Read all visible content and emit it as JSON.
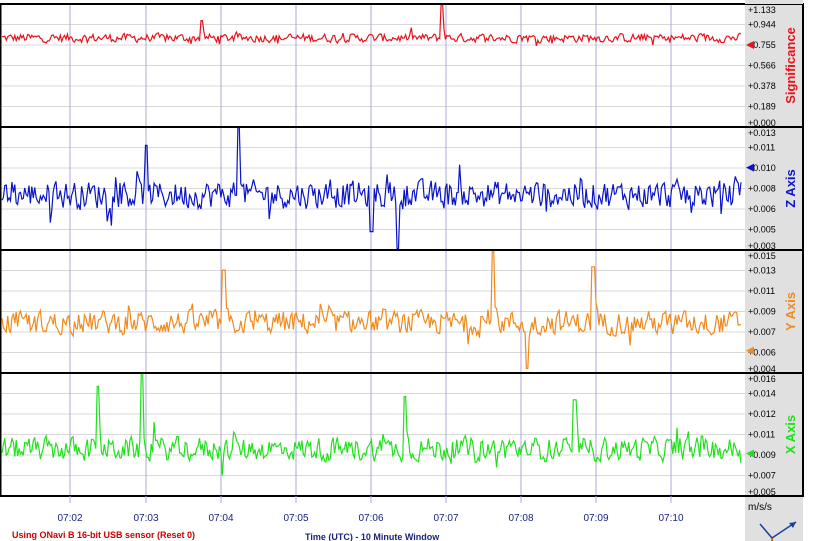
{
  "chart_data": [
    {
      "type": "line",
      "name": "significance",
      "ylabel": "Significance",
      "color": "#e8121c",
      "yticks": [
        "+0.000",
        "+0.189",
        "+0.378",
        "+0.566",
        "+0.755",
        "+0.944",
        "+1.133"
      ],
      "ylim": [
        0.0,
        1.133
      ],
      "marker_value": 0.755,
      "baseline": 0.82,
      "amplitude": 0.05,
      "spikes": [
        [
          0.595,
          1.14
        ],
        [
          0.27,
          0.98
        ]
      ]
    },
    {
      "type": "line",
      "name": "z-axis",
      "ylabel": "Z Axis",
      "color": "#0a14c8",
      "yticks": [
        "+0.003",
        "+0.005",
        "+0.006",
        "+0.008",
        "+0.010",
        "+0.011",
        "+0.013"
      ],
      "ylim": [
        0.003,
        0.013
      ],
      "marker_value": 0.0097,
      "baseline": 0.0075,
      "amplitude": 0.0014,
      "spikes": [
        [
          0.32,
          0.013
        ],
        [
          0.195,
          0.0115
        ],
        [
          0.535,
          0.0031
        ],
        [
          0.5,
          0.0045
        ]
      ]
    },
    {
      "type": "line",
      "name": "y-axis",
      "ylabel": "Y Axis",
      "color": "#f08a1c",
      "yticks": [
        "+0.004",
        "+0.006",
        "+0.007",
        "+0.009",
        "+0.011",
        "+0.013",
        "+0.015"
      ],
      "ylim": [
        0.004,
        0.015
      ],
      "marker_value": 0.006,
      "baseline": 0.0085,
      "amplitude": 0.0013,
      "spikes": [
        [
          0.665,
          0.015
        ],
        [
          0.8,
          0.0135
        ],
        [
          0.3,
          0.0132
        ],
        [
          0.71,
          0.0044
        ]
      ]
    },
    {
      "type": "line",
      "name": "x-axis",
      "ylabel": "X Axis",
      "color": "#22e01e",
      "yticks": [
        "+0.005",
        "+0.007",
        "+0.009",
        "+0.011",
        "+0.012",
        "+0.014",
        "+0.016"
      ],
      "ylim": [
        0.005,
        0.016
      ],
      "marker_value": 0.0088,
      "baseline": 0.0092,
      "amplitude": 0.0013,
      "spikes": [
        [
          0.19,
          0.0163
        ],
        [
          0.13,
          0.0148
        ],
        [
          0.545,
          0.0139
        ],
        [
          0.775,
          0.0136
        ]
      ]
    }
  ],
  "time_axis": {
    "ticks": [
      "07:02",
      "07:03",
      "07:04",
      "07:05",
      "07:06",
      "07:07",
      "07:08",
      "07:09",
      "07:10"
    ],
    "title": "Time (UTC) - 10 Minute Window"
  },
  "sensor_status": "Using ONavi B 16-bit USB sensor (Reset 0)",
  "units": "m/s/s",
  "colors": {
    "grid": "#a8a8d8",
    "panel_border": "#000000",
    "side_bg": "#e0e0e0",
    "status_text": "#cc0000"
  }
}
